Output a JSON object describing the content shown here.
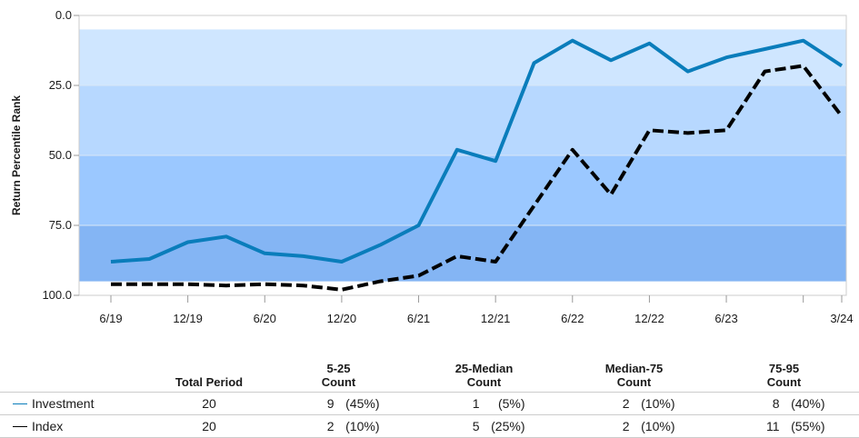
{
  "chart_data": {
    "type": "line",
    "ylabel": "Return Percentile Rank",
    "ylim": [
      100,
      0
    ],
    "y_inverted": true,
    "y_ticks": [
      "0.0",
      "25.0",
      "50.0",
      "75.0",
      "100.0"
    ],
    "y_tick_values": [
      0,
      25,
      50,
      75,
      100
    ],
    "x_tick_labels": [
      "6/19",
      "12/19",
      "6/20",
      "12/20",
      "6/21",
      "12/21",
      "6/22",
      "12/22",
      "6/23",
      "",
      "3/24"
    ],
    "x_tick_positions": [
      0,
      2,
      4,
      6,
      8,
      10,
      12,
      14,
      16,
      18,
      19
    ],
    "bands": [
      {
        "from": 5,
        "to": 25,
        "color": "#cfe6ff"
      },
      {
        "from": 25,
        "to": 50,
        "color": "#b7d8ff"
      },
      {
        "from": 50,
        "to": 75,
        "color": "#9bc8ff"
      },
      {
        "from": 75,
        "to": 95,
        "color": "#84b5f4"
      }
    ],
    "series": [
      {
        "name": "Investment",
        "color": "#0a7dbb",
        "dash": false,
        "values": [
          88,
          87,
          81,
          79,
          85,
          86,
          88,
          82,
          75,
          48,
          52,
          17,
          9,
          16,
          10,
          20,
          15,
          12,
          9,
          18
        ]
      },
      {
        "name": "Index",
        "color": "#000000",
        "dash": true,
        "values": [
          96,
          96,
          96,
          96.5,
          96,
          96.5,
          98,
          95,
          93,
          86,
          88,
          68,
          48,
          64,
          41,
          42,
          41,
          20,
          18,
          36
        ]
      }
    ]
  },
  "table": {
    "headers": [
      {
        "line1": "",
        "line2": ""
      },
      {
        "line1": "Total Period",
        "line2": ""
      },
      {
        "line1": "5-25",
        "line2": "Count"
      },
      {
        "line1": "25-Median",
        "line2": "Count"
      },
      {
        "line1": "Median-75",
        "line2": "Count"
      },
      {
        "line1": "75-95",
        "line2": "Count"
      }
    ],
    "rows": [
      {
        "name": "Investment",
        "color": "#0a7dbb",
        "total": "20",
        "cells": [
          {
            "count": "9",
            "pct": "(45%)"
          },
          {
            "count": "1",
            "pct": "(5%)"
          },
          {
            "count": "2",
            "pct": "(10%)"
          },
          {
            "count": "8",
            "pct": "(40%)"
          }
        ]
      },
      {
        "name": "Index",
        "color": "#000000",
        "total": "20",
        "cells": [
          {
            "count": "2",
            "pct": "(10%)"
          },
          {
            "count": "5",
            "pct": "(25%)"
          },
          {
            "count": "2",
            "pct": "(10%)"
          },
          {
            "count": "11",
            "pct": "(55%)"
          }
        ]
      }
    ]
  }
}
